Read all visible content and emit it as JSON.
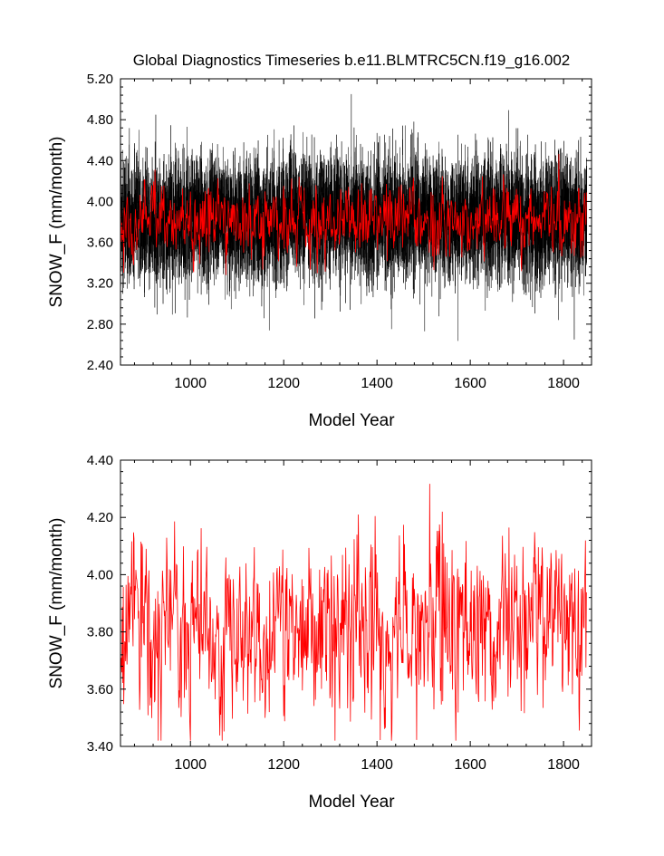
{
  "title": "Global Diagnostics Timeseries b.e11.BLMTRC5CN.f19_g16.002",
  "colors": {
    "monthly": "#000000",
    "annual": "#ff0000",
    "axis": "#000000"
  },
  "chart_data": [
    {
      "type": "line",
      "title": "Global Diagnostics Timeseries b.e11.BLMTRC5CN.f19_g16.002",
      "xlabel": "Model Year",
      "ylabel": "SNOW_F (mm/month)",
      "xlim": [
        850,
        1860
      ],
      "ylim": [
        2.4,
        5.2
      ],
      "x_ticks": [
        1000,
        1200,
        1400,
        1600,
        1800
      ],
      "x_tick_labels": [
        "1000",
        "1200",
        "1400",
        "1600",
        "1800"
      ],
      "y_ticks": [
        2.4,
        2.8,
        3.2,
        3.6,
        4.0,
        4.4,
        4.8,
        5.2
      ],
      "y_tick_labels": [
        "2.40",
        "2.80",
        "3.20",
        "3.60",
        "4.00",
        "4.40",
        "4.80",
        "5.20"
      ],
      "grid": false,
      "legend": "none",
      "series": [
        {
          "color": "#000000",
          "resolution": "monthly",
          "x": [
            850,
            1850
          ],
          "mean": 3.82,
          "typical_range": [
            3.3,
            4.4
          ],
          "extremes": {
            "min": 2.65,
            "max": 5.05,
            "max_year": 1345,
            "min_year": 1823
          }
        },
        {
          "color": "#ff0000",
          "resolution": "annual",
          "x": [
            850,
            1850
          ],
          "mean": 3.82,
          "typical_range": [
            3.5,
            4.15
          ]
        }
      ]
    },
    {
      "type": "line",
      "xlabel": "Model Year",
      "ylabel": "SNOW_F (mm/month)",
      "xlim": [
        850,
        1860
      ],
      "ylim": [
        3.4,
        4.4
      ],
      "x_ticks": [
        1000,
        1200,
        1400,
        1600,
        1800
      ],
      "x_tick_labels": [
        "1000",
        "1200",
        "1400",
        "1600",
        "1800"
      ],
      "y_ticks": [
        3.4,
        3.6,
        3.8,
        4.0,
        4.2,
        4.4
      ],
      "y_tick_labels": [
        "3.40",
        "3.60",
        "3.80",
        "4.00",
        "4.20",
        "4.40"
      ],
      "grid": false,
      "legend": "none",
      "series": [
        {
          "color": "#ff0000",
          "resolution": "annual",
          "x": [
            850,
            1850
          ],
          "mean": 3.82,
          "typical_range": [
            3.55,
            4.12
          ],
          "extremes": {
            "min": 3.42,
            "max": 4.22,
            "max_year": 1540,
            "min_year": 1310
          }
        }
      ]
    }
  ]
}
